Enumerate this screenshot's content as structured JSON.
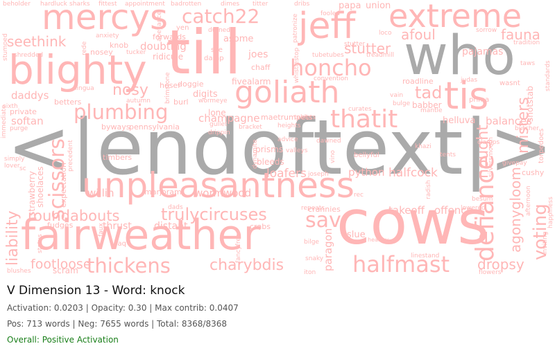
{
  "header": {
    "title": "V Dimension 13 - Word: knock",
    "stats_line": "Activation: 0.0203 | Opacity: 0.30 | Max contrib: 0.0407",
    "counts_line": "Pos: 713 words | Neg: 7655 words | Total: 8368/8368",
    "overall_label": "Overall: Positive Activation"
  },
  "colors": {
    "word_positive": "#ffb6b6",
    "word_special": "#aaaaaa",
    "overall_text": "#1a7f1a"
  },
  "wordcloud": {
    "words": [
      "<|endoftext|>",
      "who",
      "cows",
      "fairweather",
      "unpleasantness",
      "blighty",
      "mercys",
      "till",
      "extreme",
      "jeff",
      "goliath",
      "catch22",
      "tis",
      "honcho",
      "thatit",
      "plumbing",
      "scissors",
      "defiance",
      "halfmast",
      "thickens",
      "charybdis",
      "voting",
      "misters",
      "sav",
      "roundabouts",
      "trulycircuses",
      "liability",
      "seethink",
      "afoul",
      "fauna",
      "stutter",
      "tad",
      "nosy",
      "footloose",
      "agonygloom",
      "nought",
      "dropsy",
      "willin",
      "wormwood",
      "loafers",
      "python",
      "halfcock",
      "takeoff",
      "offence",
      "balances",
      "helluva",
      "champagne",
      "softan",
      "daddys",
      "doubting",
      "slue",
      "paragon",
      "papa",
      "union",
      "pajamas",
      "fivealarm",
      "digits",
      "hoser",
      "ridicule",
      "joes",
      "knob",
      "marjoram",
      "distant",
      "thrust",
      "fudges",
      "scram",
      "crabs",
      "crannies",
      "prisms",
      "bleeds",
      "bellyful",
      "strawberry",
      "shoelaces",
      "roadline",
      "babber",
      "shotstab",
      "byways",
      "pennsylvania",
      "expectation",
      "timbers",
      "lone",
      "beholder",
      "hardluck",
      "sharks",
      "fittest",
      "appointment",
      "badrotten",
      "dimes",
      "titter",
      "dribs",
      "fooled",
      "sorrow",
      "tradition",
      "flowers",
      "blushes",
      "linestand",
      "healthy",
      "maetrumpets",
      "bulge",
      "mantle",
      "prima",
      "judas",
      "wasnt",
      "clamps",
      "tents",
      "khazi",
      "radish",
      "besum",
      "lowered",
      "givepay",
      "inviting",
      "happiness",
      "durned",
      "asome",
      "yen",
      "forwards",
      "sce",
      "damp",
      "abeyance",
      "chaff",
      "whistlestop",
      "tubetubes",
      "treadmill",
      "convention",
      "vain",
      "curates",
      "betters",
      "autumn",
      "burl",
      "wormeye",
      "doggie",
      "gullet",
      "bracket",
      "heights",
      "advice",
      "dawned",
      "valleys",
      "vino",
      "joseph",
      "repeats",
      "rec",
      "faq",
      "bilge",
      "snaky",
      "iton",
      "stutter",
      "loco",
      "loco",
      "dads",
      "status",
      "faux",
      "fancyfree",
      "standards",
      "taws",
      "sixth",
      "private",
      "purge",
      "immediate",
      "simply",
      "lover",
      "stumped",
      "shredded",
      "lingua",
      "anxiety",
      "tucker",
      "nosey",
      "rede",
      "brimstone",
      "tablets",
      "dynamite",
      "drippin",
      "butcher",
      "torpedoes",
      "cushy",
      "silversmooth",
      "afternoon",
      "precedent",
      "sc",
      "patronize"
    ]
  }
}
